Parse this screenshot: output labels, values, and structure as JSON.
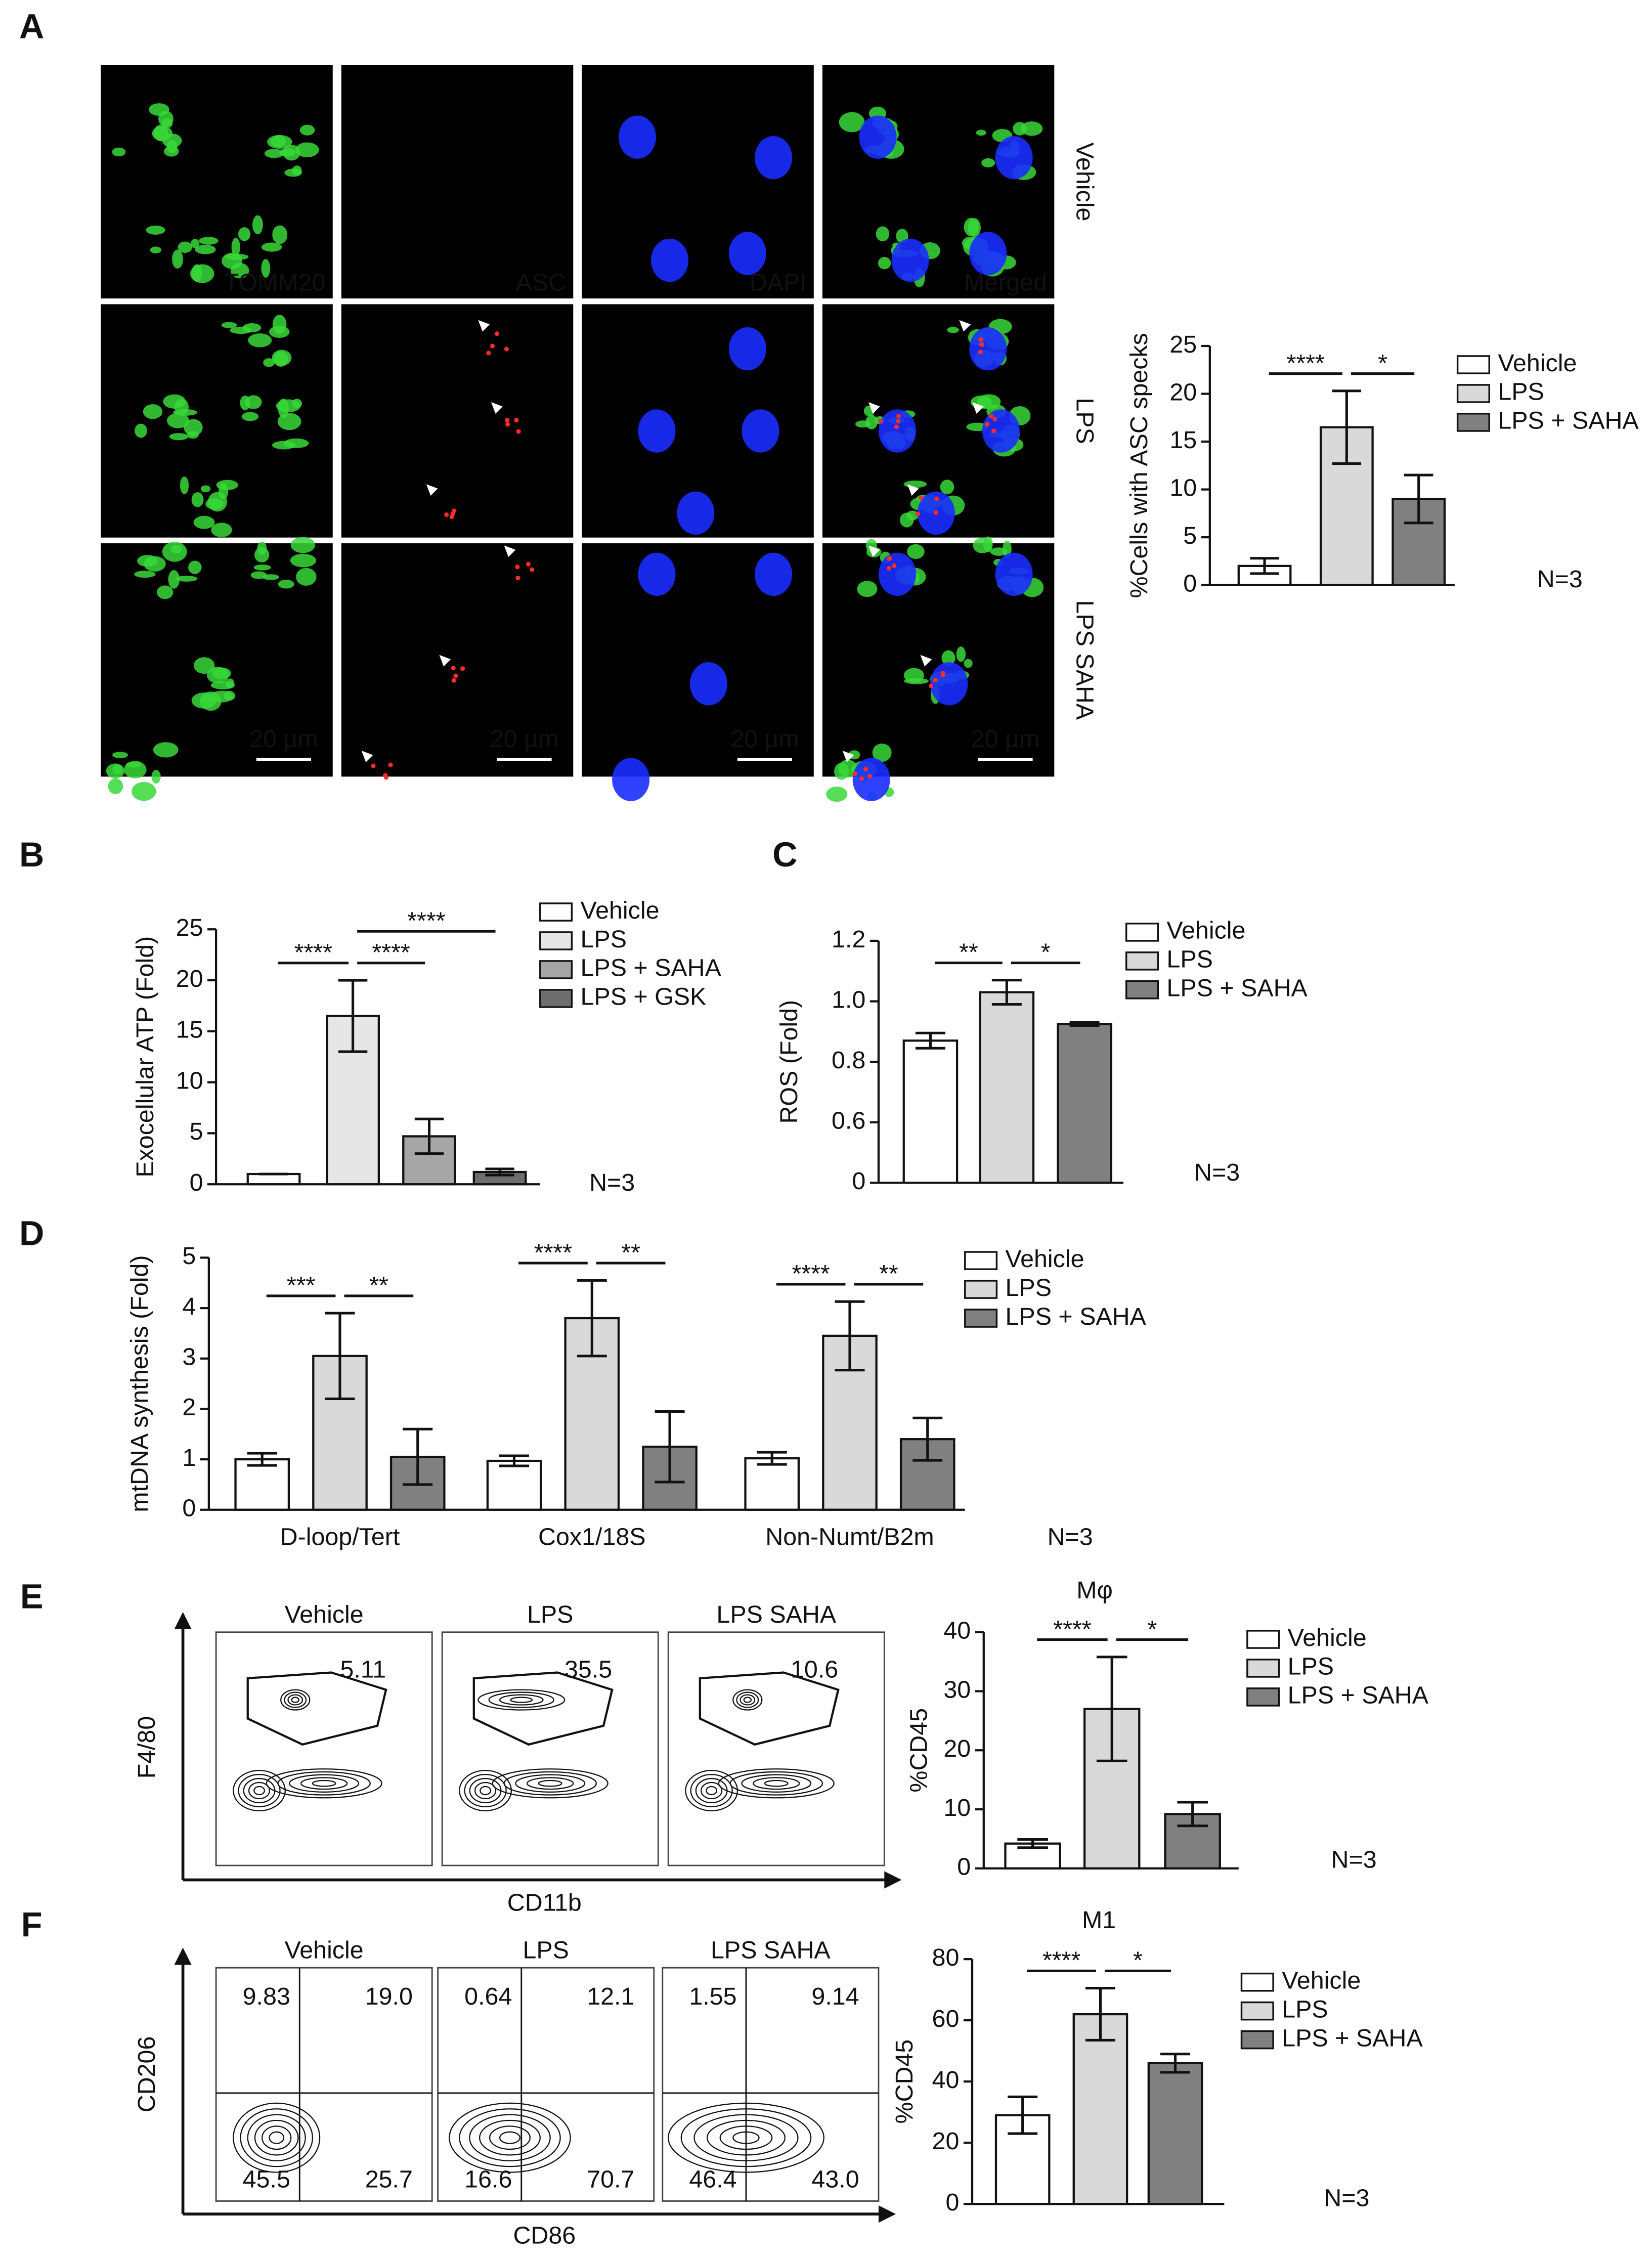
{
  "panel_labels": [
    "A",
    "B",
    "C",
    "D",
    "E",
    "F"
  ],
  "microscopy": {
    "channels": [
      {
        "name": "TOMM20",
        "color": "#3ddc3d"
      },
      {
        "name": "ASC",
        "color": "#e04848"
      },
      {
        "name": "DAPI",
        "color": "#a0a0ff"
      },
      {
        "name": "Merged",
        "color": "#ffffff"
      }
    ],
    "conditions": [
      "Vehicle",
      "LPS",
      "LPS SAHA"
    ],
    "scale_bar": "20 µm"
  },
  "flow": [
    {
      "x_label": "CD11b",
      "y_label": "F4/80",
      "samples": [
        {
          "name": "Vehicle",
          "gate": "5.11"
        },
        {
          "name": "LPS",
          "gate": "35.5"
        },
        {
          "name": "LPS SAHA",
          "gate": "10.6"
        }
      ]
    },
    {
      "x_label": "CD86",
      "y_label": "CD206",
      "samples": [
        {
          "name": "Vehicle",
          "quadrants": [
            "9.83",
            "19.0",
            "45.5",
            "25.7"
          ]
        },
        {
          "name": "LPS",
          "quadrants": [
            "0.64",
            "12.1",
            "16.6",
            "70.7"
          ]
        },
        {
          "name": "LPS SAHA",
          "quadrants": [
            "1.55",
            "9.14",
            "46.4",
            "43.0"
          ]
        }
      ]
    }
  ],
  "chart_data": [
    {
      "type": "bar",
      "y_label": "%Cells with ASC specks",
      "categories": [
        "Vehicle",
        "LPS",
        "LPS + SAHA"
      ],
      "values": [
        2,
        16.5,
        9
      ],
      "errors": [
        0.8,
        3.8,
        2.5
      ],
      "colors": [
        "#ffffff",
        "#d9d9d9",
        "#808080"
      ],
      "ylim": [
        0,
        25
      ],
      "yticks": [
        0,
        5,
        10,
        15,
        20,
        25
      ],
      "brackets": [
        {
          "label": "****",
          "between": [
            "Vehicle",
            "LPS"
          ]
        },
        {
          "label": "*",
          "between": [
            "LPS",
            "LPS + SAHA"
          ]
        }
      ],
      "note": "N=3"
    },
    {
      "type": "bar",
      "y_label": "Exocellular ATP (Fold)",
      "categories": [
        "Vehicle",
        "LPS",
        "LPS + SAHA",
        "LPS + GSK"
      ],
      "values": [
        1,
        16.5,
        4.7,
        1.2
      ],
      "errors": [
        0,
        3.5,
        1.7,
        0.3
      ],
      "colors": [
        "#ffffff",
        "#e6e6e6",
        "#a6a6a6",
        "#6e6e6e"
      ],
      "ylim": [
        0,
        25
      ],
      "yticks": [
        0,
        5,
        10,
        15,
        20,
        25
      ],
      "brackets": [
        {
          "label": "****",
          "between": [
            "Vehicle",
            "LPS"
          ]
        },
        {
          "label": "****",
          "between": [
            "LPS",
            "LPS + SAHA"
          ]
        },
        {
          "label": "****",
          "between": [
            "LPS",
            "LPS + GSK"
          ]
        }
      ],
      "note": "N=3"
    },
    {
      "type": "bar",
      "y_label": "ROS (Fold)",
      "categories": [
        "Vehicle",
        "LPS",
        "LPS + SAHA"
      ],
      "values": [
        0.87,
        1.03,
        0.925
      ],
      "errors": [
        0.025,
        0.04,
        0.005
      ],
      "colors": [
        "#ffffff",
        "#d9d9d9",
        "#808080"
      ],
      "ylim": [
        0.4,
        1.2
      ],
      "axis_break": true,
      "yticks": [
        0,
        0.6,
        0.8,
        {
          "value": 1,
          "label": "1.0"
        },
        1.2
      ],
      "brackets": [
        {
          "label": "**",
          "between": [
            "Vehicle",
            "LPS"
          ]
        },
        {
          "label": "*",
          "between": [
            "LPS",
            "LPS + SAHA"
          ]
        }
      ],
      "note": "N=3"
    },
    {
      "type": "bar",
      "y_label": "mtDNA synthesis (Fold)",
      "categories": [
        "D-loop/Tert",
        "Cox1/18S",
        "Non-Numt/B2m"
      ],
      "series": [
        {
          "name": "Vehicle",
          "color": "#ffffff",
          "values": [
            1.0,
            0.97,
            1.02
          ],
          "errors": [
            0.12,
            0.1,
            0.12
          ]
        },
        {
          "name": "LPS",
          "color": "#d9d9d9",
          "values": [
            3.05,
            3.8,
            3.45
          ],
          "errors": [
            0.85,
            0.75,
            0.68
          ]
        },
        {
          "name": "LPS + SAHA",
          "color": "#808080",
          "values": [
            1.05,
            1.25,
            1.4
          ],
          "errors": [
            0.55,
            0.7,
            0.42
          ]
        }
      ],
      "ylim": [
        0,
        5
      ],
      "yticks": [
        0,
        1,
        2,
        3,
        4,
        5
      ],
      "brackets": [
        {
          "label": "***",
          "group": "D-loop/Tert",
          "between": [
            "Vehicle",
            "LPS"
          ]
        },
        {
          "label": "**",
          "group": "D-loop/Tert",
          "between": [
            "LPS",
            "LPS + SAHA"
          ]
        },
        {
          "label": "****",
          "group": "Cox1/18S",
          "between": [
            "Vehicle",
            "LPS"
          ]
        },
        {
          "label": "**",
          "group": "Cox1/18S",
          "between": [
            "LPS",
            "LPS + SAHA"
          ]
        },
        {
          "label": "****",
          "group": "Non-Numt/B2m",
          "between": [
            "Vehicle",
            "LPS"
          ]
        },
        {
          "label": "**",
          "group": "Non-Numt/B2m",
          "between": [
            "LPS",
            "LPS + SAHA"
          ]
        }
      ],
      "note": "N=3"
    },
    {
      "type": "bar",
      "title": "Mφ",
      "y_label": "%CD45",
      "categories": [
        "Vehicle",
        "LPS",
        "LPS + SAHA"
      ],
      "values": [
        4.2,
        27,
        9.2
      ],
      "errors": [
        0.7,
        8.8,
        2
      ],
      "colors": [
        "#ffffff",
        "#d9d9d9",
        "#808080"
      ],
      "ylim": [
        0,
        40
      ],
      "yticks": [
        0,
        10,
        20,
        30,
        40
      ],
      "brackets": [
        {
          "label": "****",
          "between": [
            "Vehicle",
            "LPS"
          ]
        },
        {
          "label": "*",
          "between": [
            "LPS",
            "LPS + SAHA"
          ]
        }
      ],
      "note": "N=3"
    },
    {
      "type": "bar",
      "title": "M1",
      "y_label": "%CD45",
      "categories": [
        "Vehicle",
        "LPS",
        "LPS + SAHA"
      ],
      "values": [
        29,
        62,
        46
      ],
      "errors": [
        6,
        8.5,
        3
      ],
      "colors": [
        "#ffffff",
        "#d9d9d9",
        "#808080"
      ],
      "ylim": [
        0,
        80
      ],
      "yticks": [
        0,
        20,
        40,
        60,
        80
      ],
      "brackets": [
        {
          "label": "****",
          "between": [
            "Vehicle",
            "LPS"
          ]
        },
        {
          "label": "*",
          "between": [
            "LPS",
            "LPS + SAHA"
          ]
        }
      ],
      "note": "N=3"
    }
  ]
}
